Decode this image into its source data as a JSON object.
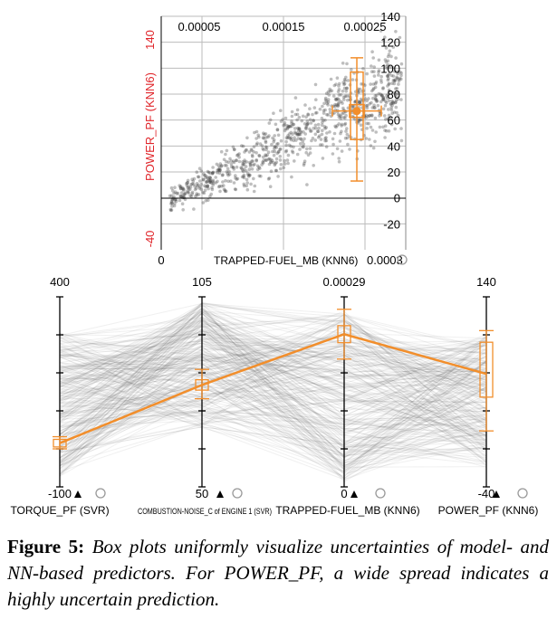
{
  "chart_data": [
    {
      "type": "scatter",
      "xlabel": "TRAPPED-FUEL_MB (KNN6)",
      "ylabel": "POWER_PF (KNN6)",
      "xlim": [
        0,
        0.0003
      ],
      "ylim": [
        -40,
        140
      ],
      "x_ticks_top": [
        "0.00005",
        "0.00015",
        "0.00025"
      ],
      "x_ticks_bottom": [
        "0",
        "0.0003"
      ],
      "y_ticks_left": [
        "140",
        "-40"
      ],
      "y_ticks_right": [
        "140",
        "120",
        "100",
        "80",
        "60",
        "40",
        "20",
        "0",
        "-20"
      ],
      "grid": true,
      "color_points": "#444444",
      "color_box": "#f28e2b",
      "box": {
        "x_center": 0.00024,
        "y_center": 67,
        "x_whisker": [
          0.00021,
          0.00027
        ],
        "x_box": [
          0.000231,
          0.000249
        ],
        "y_whisker": [
          13,
          108
        ],
        "y_box": [
          45,
          97
        ]
      }
    },
    {
      "type": "parallel-coordinates",
      "axes": [
        {
          "name": "TORQUE_PF (SVR)",
          "top": "400",
          "bottom": "-100",
          "box": {
            "median": 15,
            "q1": 5,
            "q3": 25,
            "whisker": [
              0,
              32
            ]
          }
        },
        {
          "name": "COMBUSTION-NOISE_C of ENGINE 1 (SVR)",
          "top": "105",
          "bottom": "50",
          "box": {
            "median": 79.5,
            "q1": 78,
            "q3": 81,
            "whisker": [
              75.5,
              84
            ]
          }
        },
        {
          "name": "TRAPPED-FUEL_MB (KNN6)",
          "top": "0.00029",
          "bottom": "0",
          "box": {
            "median": 0.000233,
            "q1": 0.00022,
            "q3": 0.000246,
            "whisker": [
              0.000195,
              0.000271
            ]
          }
        },
        {
          "name": "POWER_PF (KNN6)",
          "top": "140",
          "bottom": "-40",
          "box": {
            "median": 67,
            "q1": 45,
            "q3": 97,
            "whisker": [
              13,
              108
            ]
          }
        }
      ],
      "color_lines": "#555555",
      "color_box": "#f28e2b"
    }
  ],
  "caption": {
    "label": "Figure 5:",
    "text": "Box plots uniformly visualize uncertainties of model- and NN-based predictors. For POWER_PF, a wide spread indicates a highly uncertain prediction."
  }
}
